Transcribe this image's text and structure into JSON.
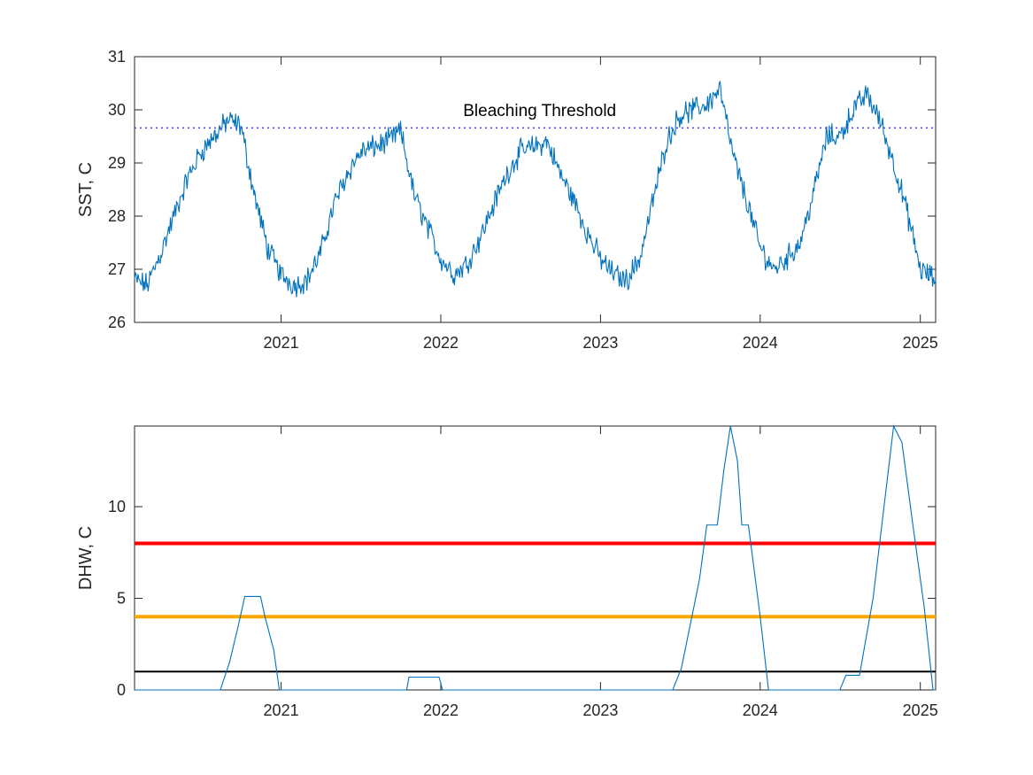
{
  "chart_data": [
    {
      "type": "line",
      "title": "",
      "xlabel": "",
      "ylabel": "SST, C",
      "xlim": [
        "2020-02-01",
        "2025-02-05"
      ],
      "ylim": [
        26,
        31
      ],
      "x_tick_labels": [
        "2021",
        "2022",
        "2023",
        "2024",
        "2025"
      ],
      "x_ticks": [
        "2021-01-01",
        "2022-01-01",
        "2023-01-01",
        "2024-01-01",
        "2025-01-01"
      ],
      "y_ticks": [
        26,
        27,
        28,
        29,
        30,
        31
      ],
      "y_tick_labels": [
        "26",
        "27",
        "28",
        "29",
        "30",
        "31"
      ],
      "grid": false,
      "series": [
        {
          "color": "#0072BD",
          "points": [
            [
              "2020-02-01",
              26.8
            ],
            [
              "2020-03-01",
              26.7
            ],
            [
              "2020-04-01",
              27.3
            ],
            [
              "2020-05-01",
              28.0
            ],
            [
              "2020-06-01",
              28.7
            ],
            [
              "2020-07-01",
              29.2
            ],
            [
              "2020-08-01",
              29.5
            ],
            [
              "2020-09-01",
              29.8
            ],
            [
              "2020-10-01",
              29.7
            ],
            [
              "2020-11-01",
              28.4
            ],
            [
              "2020-12-01",
              27.4
            ],
            [
              "2021-01-01",
              26.9
            ],
            [
              "2021-02-01",
              26.7
            ],
            [
              "2021-03-01",
              26.8
            ],
            [
              "2021-04-01",
              27.3
            ],
            [
              "2021-05-01",
              28.2
            ],
            [
              "2021-06-01",
              28.8
            ],
            [
              "2021-07-01",
              29.2
            ],
            [
              "2021-08-01",
              29.3
            ],
            [
              "2021-09-01",
              29.4
            ],
            [
              "2021-10-01",
              29.6
            ],
            [
              "2021-11-01",
              28.4
            ],
            [
              "2021-12-01",
              27.8
            ],
            [
              "2022-01-01",
              27.2
            ],
            [
              "2022-02-01",
              26.9
            ],
            [
              "2022-03-01",
              27.1
            ],
            [
              "2022-04-01",
              27.6
            ],
            [
              "2022-05-01",
              28.2
            ],
            [
              "2022-06-01",
              28.8
            ],
            [
              "2022-07-01",
              29.2
            ],
            [
              "2022-08-01",
              29.3
            ],
            [
              "2022-09-01",
              29.4
            ],
            [
              "2022-10-01",
              28.8
            ],
            [
              "2022-11-01",
              28.3
            ],
            [
              "2022-12-01",
              27.7
            ],
            [
              "2023-01-01",
              27.2
            ],
            [
              "2023-02-01",
              26.9
            ],
            [
              "2023-03-01",
              26.8
            ],
            [
              "2023-04-01",
              27.2
            ],
            [
              "2023-05-01",
              28.3
            ],
            [
              "2023-06-01",
              29.4
            ],
            [
              "2023-07-01",
              29.9
            ],
            [
              "2023-08-01",
              30.0
            ],
            [
              "2023-09-01",
              30.1
            ],
            [
              "2023-10-01",
              30.4
            ],
            [
              "2023-10-20",
              29.6
            ],
            [
              "2023-11-01",
              29.1
            ],
            [
              "2023-12-01",
              28.3
            ],
            [
              "2024-01-01",
              27.4
            ],
            [
              "2024-02-01",
              27.0
            ],
            [
              "2024-03-01",
              27.2
            ],
            [
              "2024-04-01",
              27.5
            ],
            [
              "2024-05-01",
              28.4
            ],
            [
              "2024-06-01",
              29.5
            ],
            [
              "2024-07-01",
              29.5
            ],
            [
              "2024-08-01",
              30.0
            ],
            [
              "2024-09-01",
              30.3
            ],
            [
              "2024-10-01",
              29.8
            ],
            [
              "2024-11-01",
              29.0
            ],
            [
              "2024-12-01",
              28.1
            ],
            [
              "2025-01-01",
              27.0
            ],
            [
              "2025-02-05",
              26.8
            ]
          ]
        },
        {
          "name": "Bleaching Threshold",
          "color": "#4D4DE0",
          "style": "dotted",
          "points": [
            [
              "2020-02-01",
              29.66
            ],
            [
              "2025-02-05",
              29.66
            ]
          ]
        }
      ],
      "annotations": [
        {
          "text": "Bleaching Threshold",
          "x": "2022-08-15",
          "y": 29.88
        }
      ]
    },
    {
      "type": "line",
      "title": "",
      "xlabel": "",
      "ylabel": "DHW, C",
      "xlim": [
        "2020-02-01",
        "2025-02-05"
      ],
      "ylim": [
        0,
        14.4
      ],
      "x_tick_labels": [
        "2021",
        "2022",
        "2023",
        "2024",
        "2025"
      ],
      "x_ticks": [
        "2021-01-01",
        "2022-01-01",
        "2023-01-01",
        "2024-01-01",
        "2025-01-01"
      ],
      "y_ticks": [
        0,
        5,
        10
      ],
      "y_tick_labels": [
        "0",
        "5",
        "10"
      ],
      "grid": false,
      "series": [
        {
          "color": "#0072BD",
          "points": [
            [
              "2020-02-01",
              0
            ],
            [
              "2020-08-15",
              0
            ],
            [
              "2020-09-05",
              1.5
            ],
            [
              "2020-09-25",
              3.5
            ],
            [
              "2020-10-10",
              5.1
            ],
            [
              "2020-11-15",
              5.1
            ],
            [
              "2020-11-25",
              4.0
            ],
            [
              "2020-12-15",
              2.2
            ],
            [
              "2020-12-28",
              0
            ],
            [
              "2021-10-15",
              0
            ],
            [
              "2021-10-20",
              0.7
            ],
            [
              "2021-12-28",
              0.7
            ],
            [
              "2022-01-05",
              0
            ],
            [
              "2023-06-15",
              0
            ],
            [
              "2023-07-05",
              1.2
            ],
            [
              "2023-08-15",
              6.0
            ],
            [
              "2023-09-01",
              9.0
            ],
            [
              "2023-09-25",
              9.0
            ],
            [
              "2023-10-10",
              12.0
            ],
            [
              "2023-10-25",
              14.4
            ],
            [
              "2023-11-10",
              12.5
            ],
            [
              "2023-11-20",
              9.0
            ],
            [
              "2023-12-05",
              9.0
            ],
            [
              "2024-01-01",
              4.0
            ],
            [
              "2024-01-20",
              0
            ],
            [
              "2024-07-01",
              0
            ],
            [
              "2024-07-15",
              0.8
            ],
            [
              "2024-08-15",
              0.8
            ],
            [
              "2024-09-15",
              5.0
            ],
            [
              "2024-10-10",
              10.0
            ],
            [
              "2024-11-01",
              14.4
            ],
            [
              "2024-11-20",
              13.5
            ],
            [
              "2024-12-15",
              9.0
            ],
            [
              "2025-01-10",
              4.5
            ],
            [
              "2025-01-30",
              0
            ],
            [
              "2025-02-05",
              0
            ]
          ]
        },
        {
          "color": "#FF0000",
          "points": [
            [
              "2020-02-01",
              8
            ],
            [
              "2025-02-05",
              8
            ]
          ]
        },
        {
          "color": "#FFA500",
          "points": [
            [
              "2020-02-01",
              4
            ],
            [
              "2025-02-05",
              4
            ]
          ]
        },
        {
          "color": "#000000",
          "points": [
            [
              "2020-02-01",
              1
            ],
            [
              "2025-02-05",
              1
            ]
          ]
        }
      ]
    }
  ]
}
